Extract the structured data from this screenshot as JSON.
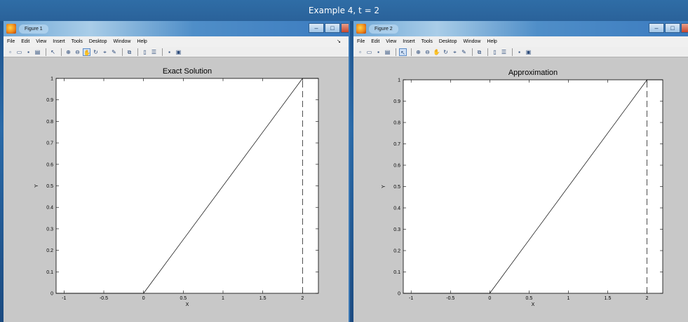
{
  "banner": {
    "title": "Example 4, t = 2"
  },
  "colors": {
    "figure_bg": "#c8c8c8",
    "axes_bg": "#ffffff",
    "line": "#000000",
    "titlebar_blue": "#3b7bbf"
  },
  "menu_items": [
    "File",
    "Edit",
    "View",
    "Insert",
    "Tools",
    "Desktop",
    "Window",
    "Help"
  ],
  "toolbar_icons": [
    "new-figure-icon",
    "open-file-icon",
    "save-icon",
    "print-icon",
    "sep",
    "pointer-icon",
    "sep",
    "zoom-in-icon",
    "zoom-out-icon",
    "pan-icon",
    "rotate-icon",
    "data-cursor-icon",
    "brush-icon",
    "sep",
    "link-icon",
    "sep",
    "colorbar-icon",
    "legend-icon",
    "sep",
    "hide-tools-icon",
    "show-tools-icon"
  ],
  "window_controls": {
    "minimize": "–",
    "maximize": "□",
    "close": "x"
  },
  "windows": [
    {
      "title": "Figure 1",
      "chart_data": {
        "type": "line",
        "title": "Exact Solution",
        "xlabel": "X",
        "ylabel": "Y",
        "xlim": [
          -1.1,
          2.2
        ],
        "ylim": [
          0,
          1
        ],
        "xticks": [
          -1,
          -0.5,
          0,
          0.5,
          1,
          1.5,
          2
        ],
        "xtick_labels": [
          "-1",
          "-0.5",
          "0",
          "0.5",
          "1",
          "1.5",
          "2"
        ],
        "yticks": [
          0,
          0.1,
          0.2,
          0.3,
          0.4,
          0.5,
          0.6,
          0.7,
          0.8,
          0.9,
          1
        ],
        "ytick_labels": [
          "0",
          "0.1",
          "0.2",
          "0.3",
          "0.4",
          "0.5",
          "0.6",
          "0.7",
          "0.8",
          "0.9",
          "1"
        ],
        "grid": false,
        "series": [
          {
            "style": "solid",
            "x": [
              -1.1,
              0,
              2,
              2.2
            ],
            "y": [
              0,
              0,
              1,
              1
            ]
          },
          {
            "style": "dashed",
            "x": [
              2,
              2
            ],
            "y": [
              0,
              1
            ]
          }
        ]
      }
    },
    {
      "title": "Figure 2",
      "chart_data": {
        "type": "line",
        "title": "Approximation",
        "xlabel": "X",
        "ylabel": "Y",
        "xlim": [
          -1.1,
          2.2
        ],
        "ylim": [
          0,
          1
        ],
        "xticks": [
          -1,
          -0.5,
          0,
          0.5,
          1,
          1.5,
          2
        ],
        "xtick_labels": [
          "-1",
          "-0.5",
          "0",
          "0.5",
          "1",
          "1.5",
          "2"
        ],
        "yticks": [
          0,
          0.1,
          0.2,
          0.3,
          0.4,
          0.5,
          0.6,
          0.7,
          0.8,
          0.9,
          1
        ],
        "ytick_labels": [
          "0",
          "0.1",
          "0.2",
          "0.3",
          "0.4",
          "0.5",
          "0.6",
          "0.7",
          "0.8",
          "0.9",
          "1"
        ],
        "grid": false,
        "series": [
          {
            "style": "solid",
            "x": [
              -1.1,
              0,
              2,
              2.2
            ],
            "y": [
              0,
              0,
              1,
              1
            ]
          },
          {
            "style": "dashed",
            "x": [
              2,
              2
            ],
            "y": [
              0,
              1
            ]
          }
        ]
      }
    }
  ]
}
